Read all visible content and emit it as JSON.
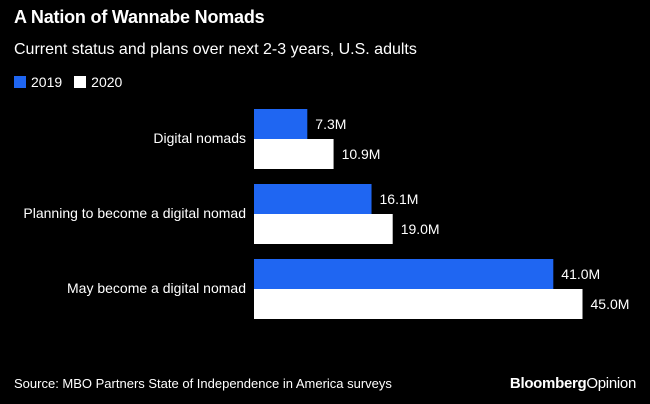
{
  "title": "A Nation of Wannabe Nomads",
  "subtitle": "Current status and plans over next 2-3 years, U.S. adults",
  "source": "Source: MBO Partners State of Independence in America surveys",
  "brand": {
    "part1": "Bloomberg",
    "part2": "Opinion"
  },
  "colors": {
    "2019": "#1f66f2",
    "2020": "#ffffff",
    "background": "#000000"
  },
  "chart_data": {
    "type": "bar",
    "orientation": "horizontal",
    "categories": [
      "Digital nomads",
      "Planning to become a digital nomad",
      "May become a digital nomad"
    ],
    "series": [
      {
        "name": "2019",
        "values": [
          7.3,
          16.1,
          41.0
        ],
        "labels": [
          "7.3M",
          "16.1M",
          "41.0M"
        ]
      },
      {
        "name": "2020",
        "values": [
          10.9,
          19.0,
          45.0
        ],
        "labels": [
          "10.9M",
          "19.0M",
          "45.0M"
        ]
      }
    ],
    "title": "A Nation of Wannabe Nomads",
    "subtitle": "Current status and plans over next 2-3 years, U.S. adults",
    "xlim": [
      0,
      45
    ],
    "legend_position": "top-left",
    "grid": false
  }
}
